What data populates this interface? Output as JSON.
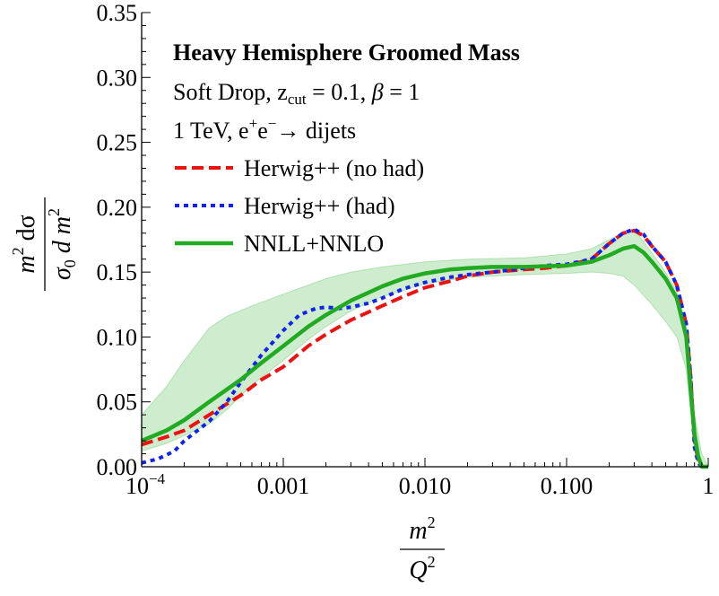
{
  "chart_data": {
    "type": "line",
    "title": "Heavy Hemisphere Groomed Mass",
    "annotations": [
      "Soft Drop, z",
      "cut",
      " = 0.1, ",
      "β",
      " = 1",
      "1 TeV, e",
      "+",
      "e",
      "−",
      "→ dijets"
    ],
    "xlabel_num": "m",
    "xlabel_num_sup": "2",
    "xlabel_den": "Q",
    "xlabel_den_sup": "2",
    "ylabel_num_m": "m",
    "ylabel_num_sup": "2",
    "ylabel_num_rest": " dσ",
    "ylabel_den_sigma": "σ",
    "ylabel_den_sub": "0",
    "ylabel_den_rest": " d m",
    "ylabel_den_sup": "2",
    "x_scale": "log",
    "xlim": [
      0.0001,
      1
    ],
    "ylim": [
      0,
      0.35
    ],
    "x_ticks": [
      {
        "value": 0.0001,
        "label": "10",
        "sup": "−4"
      },
      {
        "value": 0.001,
        "label": "0.001",
        "sup": ""
      },
      {
        "value": 0.01,
        "label": "0.010",
        "sup": ""
      },
      {
        "value": 0.1,
        "label": "0.100",
        "sup": ""
      },
      {
        "value": 1,
        "label": "1",
        "sup": ""
      }
    ],
    "y_ticks": [
      {
        "value": 0.0,
        "label": "0.00"
      },
      {
        "value": 0.05,
        "label": "0.05"
      },
      {
        "value": 0.1,
        "label": "0.10"
      },
      {
        "value": 0.15,
        "label": "0.15"
      },
      {
        "value": 0.2,
        "label": "0.20"
      },
      {
        "value": 0.25,
        "label": "0.25"
      },
      {
        "value": 0.3,
        "label": "0.30"
      },
      {
        "value": 0.35,
        "label": "0.35"
      }
    ],
    "legend_position": "top-left",
    "band": {
      "color": "#22aa22",
      "x": [
        0.0001,
        0.00015,
        0.0002,
        0.0003,
        0.0004,
        0.0006,
        0.001,
        0.0015,
        0.002,
        0.003,
        0.005,
        0.01,
        0.02,
        0.05,
        0.1,
        0.15,
        0.2,
        0.25,
        0.3,
        0.4,
        0.5,
        0.6,
        0.7,
        0.8,
        0.9,
        1.0
      ],
      "upper": [
        0.04,
        0.062,
        0.082,
        0.107,
        0.116,
        0.124,
        0.133,
        0.14,
        0.145,
        0.15,
        0.154,
        0.158,
        0.16,
        0.161,
        0.164,
        0.168,
        0.175,
        0.18,
        0.183,
        0.165,
        0.15,
        0.135,
        0.11,
        0.04,
        0.01,
        0.0
      ],
      "lower": [
        0.012,
        0.018,
        0.024,
        0.033,
        0.044,
        0.063,
        0.082,
        0.098,
        0.108,
        0.12,
        0.131,
        0.141,
        0.146,
        0.148,
        0.149,
        0.15,
        0.149,
        0.147,
        0.14,
        0.125,
        0.112,
        0.1,
        0.075,
        0.012,
        0.0,
        0.0
      ]
    },
    "series": [
      {
        "name": "Herwig++ (no had)",
        "color": "#ee1111",
        "style": "dashed",
        "x": [
          0.0001,
          0.00015,
          0.0002,
          0.0003,
          0.0005,
          0.0007,
          0.001,
          0.0015,
          0.002,
          0.003,
          0.005,
          0.007,
          0.01,
          0.015,
          0.02,
          0.03,
          0.05,
          0.07,
          0.1,
          0.15,
          0.2,
          0.25,
          0.3,
          0.35,
          0.4,
          0.5,
          0.6,
          0.7,
          0.75,
          0.8,
          0.85,
          0.9,
          1.0
        ],
        "y": [
          0.017,
          0.023,
          0.028,
          0.04,
          0.055,
          0.067,
          0.077,
          0.093,
          0.102,
          0.113,
          0.124,
          0.131,
          0.138,
          0.143,
          0.147,
          0.15,
          0.152,
          0.153,
          0.155,
          0.16,
          0.172,
          0.18,
          0.182,
          0.178,
          0.17,
          0.158,
          0.14,
          0.11,
          0.07,
          0.02,
          0.005,
          0.0,
          0.0
        ]
      },
      {
        "name": "Herwig++ (had)",
        "color": "#1122ee",
        "style": "dotted",
        "x": [
          0.0001,
          0.00013,
          0.00017,
          0.0002,
          0.0003,
          0.0004,
          0.0005,
          0.0007,
          0.001,
          0.0013,
          0.0017,
          0.002,
          0.0025,
          0.003,
          0.004,
          0.005,
          0.007,
          0.01,
          0.015,
          0.02,
          0.03,
          0.05,
          0.07,
          0.1,
          0.15,
          0.2,
          0.25,
          0.3,
          0.35,
          0.4,
          0.5,
          0.6,
          0.7,
          0.75,
          0.8,
          0.85,
          0.9,
          1.0
        ],
        "y": [
          0.003,
          0.006,
          0.012,
          0.02,
          0.035,
          0.05,
          0.065,
          0.086,
          0.105,
          0.117,
          0.122,
          0.123,
          0.122,
          0.123,
          0.126,
          0.13,
          0.137,
          0.142,
          0.146,
          0.148,
          0.15,
          0.153,
          0.155,
          0.156,
          0.16,
          0.172,
          0.18,
          0.183,
          0.179,
          0.17,
          0.158,
          0.14,
          0.11,
          0.07,
          0.015,
          0.003,
          0.0,
          0.0
        ]
      },
      {
        "name": "NNLL+NNLO",
        "color": "#22aa22",
        "style": "solid",
        "x": [
          0.0001,
          0.00015,
          0.0002,
          0.0003,
          0.0005,
          0.0007,
          0.001,
          0.0015,
          0.002,
          0.003,
          0.005,
          0.007,
          0.01,
          0.015,
          0.02,
          0.03,
          0.05,
          0.1,
          0.15,
          0.2,
          0.25,
          0.3,
          0.35,
          0.4,
          0.5,
          0.6,
          0.7,
          0.75,
          0.8,
          0.85,
          0.9,
          1.0
        ],
        "y": [
          0.02,
          0.028,
          0.036,
          0.05,
          0.067,
          0.08,
          0.093,
          0.108,
          0.117,
          0.128,
          0.139,
          0.145,
          0.149,
          0.152,
          0.153,
          0.154,
          0.154,
          0.155,
          0.158,
          0.163,
          0.168,
          0.17,
          0.165,
          0.158,
          0.145,
          0.13,
          0.1,
          0.06,
          0.025,
          0.008,
          0.0,
          0.0
        ]
      }
    ]
  }
}
